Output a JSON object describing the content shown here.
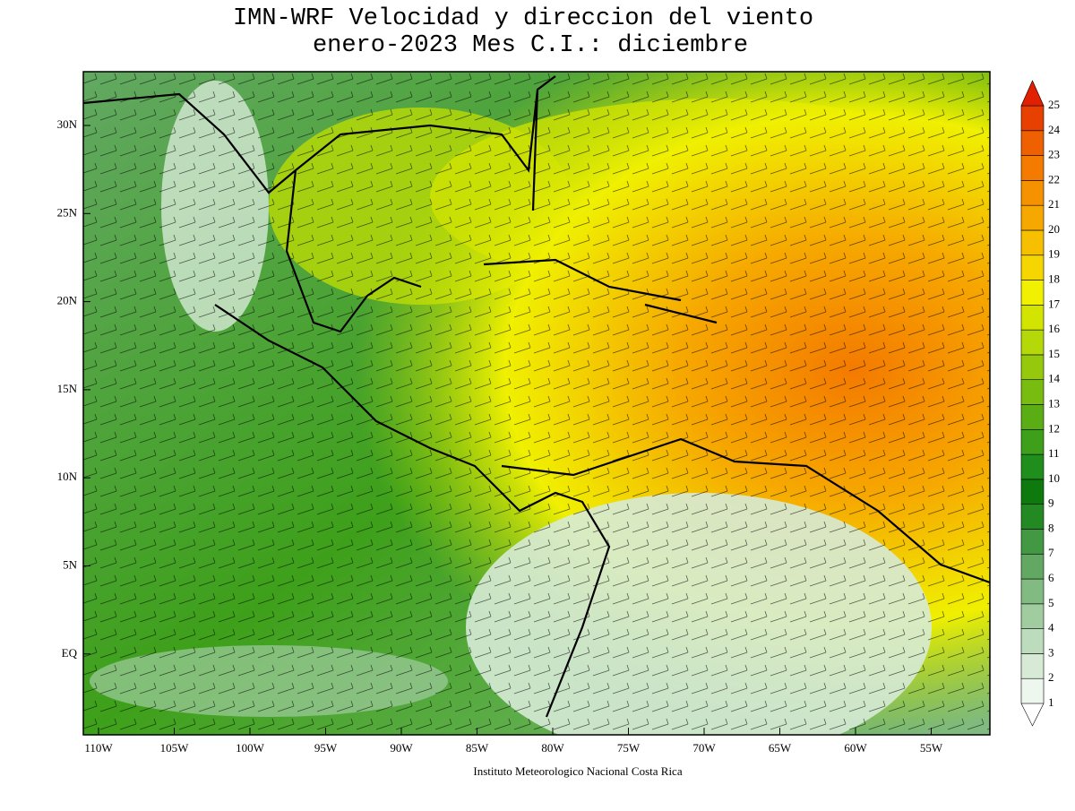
{
  "title": [
    "IMN-WRF Velocidad y direccion del viento",
    "enero-2023 Mes C.I.: diciembre"
  ],
  "lon_labels": [
    "110W",
    "105W",
    "100W",
    "95W",
    "90W",
    "85W",
    "80W",
    "75W",
    "70W",
    "65W",
    "60W",
    "55W"
  ],
  "lat_labels": [
    "30N",
    "25N",
    "20N",
    "15N",
    "10N",
    "5N",
    "EQ"
  ],
  "colorbar": {
    "labels": [
      1,
      2,
      3,
      4,
      5,
      6,
      7,
      8,
      9,
      10,
      11,
      12,
      13,
      14,
      15,
      16,
      17,
      18,
      19,
      20,
      21,
      22,
      23,
      24,
      25
    ],
    "colors": [
      "#eef7ee",
      "#d6ead6",
      "#bddcbd",
      "#a0cca0",
      "#82bb82",
      "#62a862",
      "#439843",
      "#238a23",
      "#0e7a0e",
      "#1f8e1c",
      "#3ea01a",
      "#5aae14",
      "#78bc10",
      "#96c80c",
      "#b4d808",
      "#d2e400",
      "#f0f000",
      "#f6d600",
      "#f6bf00",
      "#f6a800",
      "#f69200",
      "#f47a00",
      "#ee6000",
      "#e84000",
      "#e02000"
    ]
  },
  "footer": "Instituto Meteorologico Nacional Costa Rica"
}
